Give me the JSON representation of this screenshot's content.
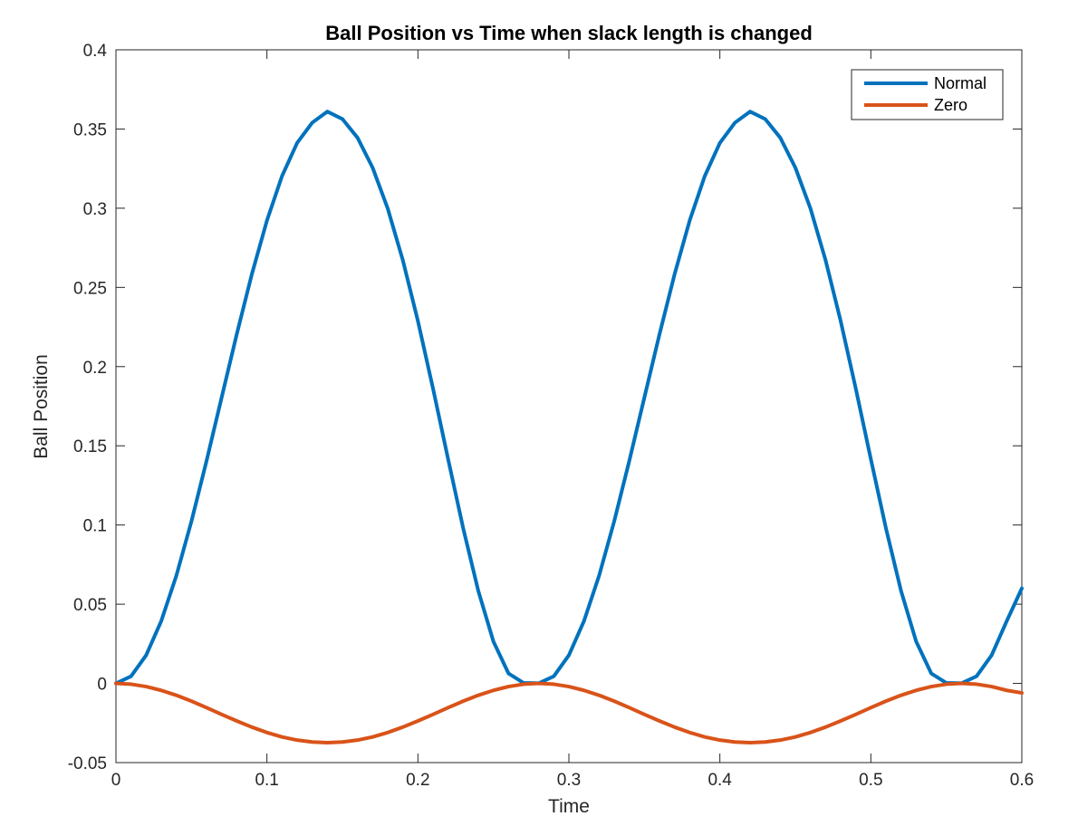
{
  "chart_data": {
    "type": "line",
    "title": "Ball Position vs Time when slack length is changed",
    "xlabel": "Time",
    "ylabel": "Ball Position",
    "xlim": [
      0,
      0.6
    ],
    "ylim": [
      -0.05,
      0.4
    ],
    "xticks": [
      0,
      0.1,
      0.2,
      0.3,
      0.4,
      0.5,
      0.6
    ],
    "xtick_labels": [
      "0",
      "0.1",
      "0.2",
      "0.3",
      "0.4",
      "0.5",
      "0.6"
    ],
    "yticks": [
      -0.05,
      0,
      0.05,
      0.1,
      0.15,
      0.2,
      0.25,
      0.3,
      0.35,
      0.4
    ],
    "ytick_labels": [
      "-0.05",
      "0",
      "0.05",
      "0.1",
      "0.15",
      "0.2",
      "0.25",
      "0.3",
      "0.35",
      "0.4"
    ],
    "grid": false,
    "legend_position": "top-right",
    "series": [
      {
        "name": "Normal",
        "color": "#0072BD",
        "x": [
          0,
          0.01,
          0.02,
          0.03,
          0.04,
          0.05,
          0.06,
          0.07,
          0.08,
          0.09,
          0.1,
          0.11,
          0.12,
          0.13,
          0.14,
          0.15,
          0.16,
          0.17,
          0.18,
          0.19,
          0.2,
          0.21,
          0.22,
          0.23,
          0.24,
          0.25,
          0.26,
          0.27,
          0.28,
          0.29,
          0.3,
          0.31,
          0.32,
          0.33,
          0.34,
          0.35,
          0.36,
          0.37,
          0.38,
          0.39,
          0.4,
          0.41,
          0.42,
          0.43,
          0.44,
          0.45,
          0.46,
          0.47,
          0.48,
          0.49,
          0.5,
          0.51,
          0.52,
          0.53,
          0.54,
          0.55,
          0.56,
          0.57,
          0.58,
          0.59,
          0.6
        ],
        "y": [
          0,
          0.0045,
          0.0178,
          0.0394,
          0.068,
          0.1023,
          0.1405,
          0.1805,
          0.2204,
          0.2583,
          0.2922,
          0.3203,
          0.3412,
          0.354,
          0.361,
          0.3563,
          0.3445,
          0.3256,
          0.2998,
          0.2672,
          0.2288,
          0.1862,
          0.1416,
          0.0979,
          0.0584,
          0.0265,
          0.0063,
          0.0003,
          0.0001,
          0.0045,
          0.0178,
          0.0394,
          0.068,
          0.1023,
          0.1405,
          0.1805,
          0.2204,
          0.2583,
          0.2922,
          0.3203,
          0.3412,
          0.354,
          0.361,
          0.3563,
          0.3445,
          0.3256,
          0.2998,
          0.2672,
          0.2288,
          0.1862,
          0.1416,
          0.0979,
          0.0584,
          0.0265,
          0.0063,
          0.0003,
          0.0001,
          0.0045,
          0.0178,
          0.0394,
          0.06
        ]
      },
      {
        "name": "Zero",
        "color": "#D95319",
        "x": [
          0,
          0.01,
          0.02,
          0.03,
          0.04,
          0.05,
          0.06,
          0.07,
          0.08,
          0.09,
          0.1,
          0.11,
          0.12,
          0.13,
          0.14,
          0.15,
          0.16,
          0.17,
          0.18,
          0.19,
          0.2,
          0.21,
          0.22,
          0.23,
          0.24,
          0.25,
          0.26,
          0.27,
          0.28,
          0.29,
          0.3,
          0.31,
          0.32,
          0.33,
          0.34,
          0.35,
          0.36,
          0.37,
          0.38,
          0.39,
          0.4,
          0.41,
          0.42,
          0.43,
          0.44,
          0.45,
          0.46,
          0.47,
          0.48,
          0.49,
          0.5,
          0.51,
          0.52,
          0.53,
          0.54,
          0.55,
          0.56,
          0.57,
          0.58,
          0.59,
          0.6
        ],
        "y": [
          0,
          -0.0005,
          -0.002,
          -0.0044,
          -0.0075,
          -0.0112,
          -0.0153,
          -0.0196,
          -0.0237,
          -0.0276,
          -0.031,
          -0.0338,
          -0.0358,
          -0.037,
          -0.0374,
          -0.037,
          -0.0358,
          -0.0338,
          -0.031,
          -0.0276,
          -0.0237,
          -0.0196,
          -0.0153,
          -0.0112,
          -0.0075,
          -0.0044,
          -0.002,
          -0.0005,
          0,
          -0.0005,
          -0.002,
          -0.0044,
          -0.0075,
          -0.0112,
          -0.0153,
          -0.0196,
          -0.0237,
          -0.0276,
          -0.031,
          -0.0338,
          -0.0358,
          -0.037,
          -0.0374,
          -0.037,
          -0.0358,
          -0.0338,
          -0.031,
          -0.0276,
          -0.0237,
          -0.0196,
          -0.0153,
          -0.0112,
          -0.0075,
          -0.0044,
          -0.002,
          -0.0005,
          0,
          -0.0005,
          -0.002,
          -0.0044,
          -0.006
        ]
      }
    ]
  }
}
